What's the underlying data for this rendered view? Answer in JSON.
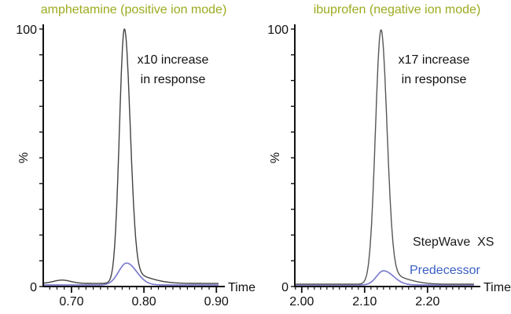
{
  "colors": {
    "background": "#ffffff",
    "title": "#9dab1f",
    "axis": "#111111",
    "stepwave_curve": "#424242",
    "predecessor_curve": "#7d7dcd",
    "predecessor_text": "#3a5fc4",
    "stepwave_text": "#1a1a1a"
  },
  "legend": {
    "items": [
      {
        "label": "StepWave  XS",
        "color": "#1a1a1a"
      },
      {
        "label": "Predecessor",
        "color": "#3a5fc4"
      }
    ]
  },
  "chart_data": [
    {
      "id": "left",
      "type": "line",
      "title": "amphetamine (positive ion mode)",
      "annotation": [
        "x10 increase",
        "in response"
      ],
      "xlabel": "Time",
      "ylabel": "%",
      "ylim": [
        0,
        100
      ],
      "y_ticks": {
        "minor_step": 10,
        "labeled": [
          {
            "value": 100,
            "label": "100"
          },
          {
            "value": 0,
            "label": "0"
          }
        ]
      },
      "x_range": [
        0.661,
        0.903
      ],
      "x_minor_step": 0.01,
      "x_major_ticks": [
        {
          "value": 0.7,
          "label": "0.70"
        },
        {
          "value": 0.8,
          "label": "0.80"
        },
        {
          "value": 0.9,
          "label": "0.90"
        }
      ],
      "series": [
        {
          "name": "Predecessor",
          "color": "#7d7dcd",
          "width": 1.7,
          "baseline": 0.6,
          "peaks": [
            {
              "center": 0.776,
              "height": 8.5,
              "sigma_l": 0.011,
              "sigma_r": 0.014
            }
          ]
        },
        {
          "name": "StepWave XS",
          "color": "#424242",
          "width": 1.4,
          "baseline": 1.2,
          "peaks": [
            {
              "center": 0.773,
              "height": 95.0,
              "sigma_l": 0.0068,
              "sigma_r": 0.008
            },
            {
              "center": 0.776,
              "height": 4.0,
              "sigma_l": 0.01,
              "sigma_r": 0.028
            },
            {
              "center": 0.687,
              "height": 1.3,
              "sigma_l": 0.012,
              "sigma_r": 0.012
            }
          ]
        }
      ]
    },
    {
      "id": "right",
      "type": "line",
      "title": "ibuprofen (negative ion mode)",
      "annotation": [
        "x17 increase",
        "in response"
      ],
      "xlabel": "Time",
      "ylabel": "%",
      "ylim": [
        0,
        100
      ],
      "y_ticks": {
        "minor_step": 10,
        "labeled": [
          {
            "value": 100,
            "label": "100"
          },
          {
            "value": 0,
            "label": "0"
          }
        ]
      },
      "x_range": [
        1.989,
        2.274
      ],
      "x_minor_step": 0.01,
      "x_major_ticks": [
        {
          "value": 2.0,
          "label": "2.00"
        },
        {
          "value": 2.1,
          "label": "2.10"
        },
        {
          "value": 2.2,
          "label": "2.20"
        }
      ],
      "series": [
        {
          "name": "Predecessor",
          "color": "#7d7dcd",
          "width": 1.7,
          "baseline": 0.6,
          "peaks": [
            {
              "center": 2.13,
              "height": 5.5,
              "sigma_l": 0.011,
              "sigma_r": 0.016
            }
          ]
        },
        {
          "name": "StepWave XS",
          "color": "#565656",
          "width": 1.4,
          "baseline": 0.9,
          "peaks": [
            {
              "center": 2.126,
              "height": 95.0,
              "sigma_l": 0.0088,
              "sigma_r": 0.0095
            },
            {
              "center": 2.13,
              "height": 4.0,
              "sigma_l": 0.012,
              "sigma_r": 0.032
            }
          ]
        }
      ]
    }
  ]
}
